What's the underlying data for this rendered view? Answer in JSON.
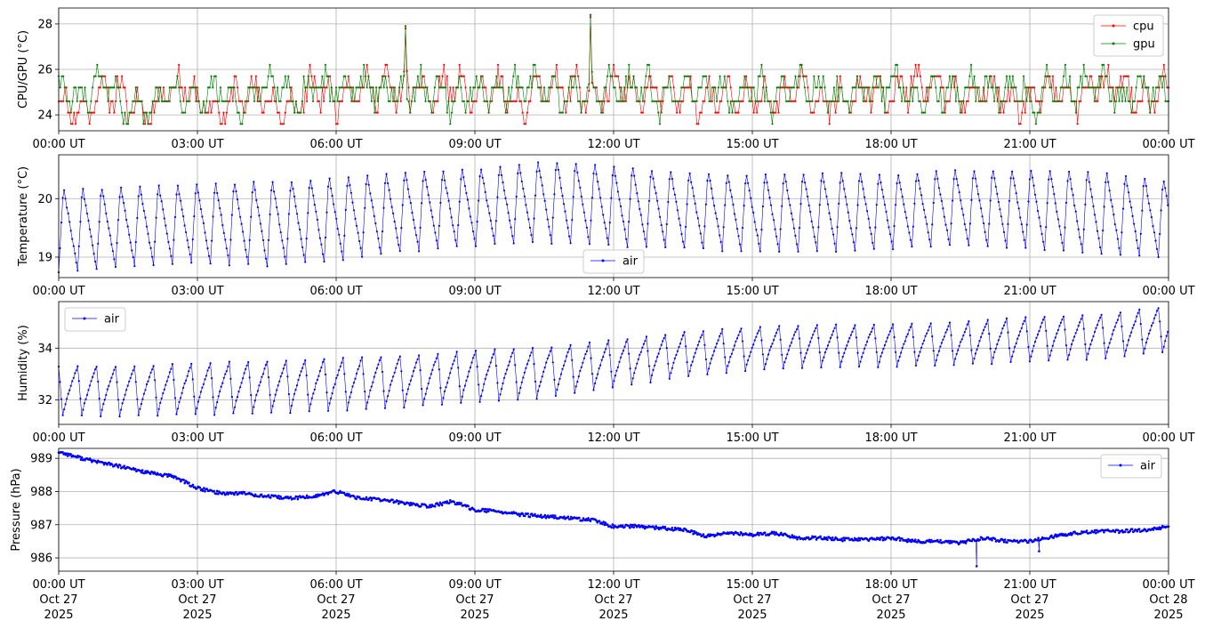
{
  "chart_data": [
    {
      "type": "line",
      "ylabel": "CPU/GPU (°C)",
      "xlabel": "",
      "ylim": [
        23.3,
        28.7
      ],
      "yticks": [
        24,
        26,
        28
      ],
      "xticks": [
        "00:00 UT",
        "03:00 UT",
        "06:00 UT",
        "09:00 UT",
        "12:00 UT",
        "15:00 UT",
        "18:00 UT",
        "21:00 UT",
        "00:00 UT"
      ],
      "grid": true,
      "legend": "top-right",
      "series": [
        {
          "name": "cpu",
          "color": "#ff0000",
          "x_hours": [
            0.0,
            0.5,
            1.0,
            1.5,
            2.0,
            2.5,
            3.0,
            3.5,
            4.0,
            4.5,
            5.0,
            5.5,
            6.0,
            6.5,
            7.0,
            7.5,
            8.0,
            8.5,
            9.0,
            9.5,
            10.0,
            10.5,
            11.0,
            11.5,
            12.0,
            12.5,
            13.0,
            13.5,
            14.0,
            14.5,
            15.0,
            15.5,
            16.0,
            16.5,
            17.0,
            17.5,
            18.0,
            18.5,
            19.0,
            19.5,
            20.0,
            20.5,
            21.0,
            21.5,
            22.0,
            22.5,
            23.0,
            23.5,
            24.0
          ],
          "values": [
            24.6,
            24.1,
            25.2,
            24.6,
            24.1,
            25.7,
            24.6,
            24.1,
            25.2,
            24.6,
            24.1,
            25.2,
            24.6,
            25.7,
            25.2,
            27.8,
            24.6,
            25.7,
            24.6,
            25.2,
            24.1,
            26.2,
            25.2,
            28.3,
            25.7,
            24.6,
            25.2,
            24.6,
            24.6,
            25.2,
            24.6,
            24.6,
            25.2,
            24.6,
            24.6,
            25.2,
            24.6,
            26.2,
            25.2,
            24.6,
            25.2,
            24.6,
            24.6,
            25.2,
            24.6,
            25.7,
            25.2,
            24.6,
            25.2
          ]
        },
        {
          "name": "gpu",
          "color": "#008000",
          "x_hours": [
            0.0,
            0.5,
            1.0,
            1.5,
            2.0,
            2.5,
            3.0,
            3.5,
            4.0,
            4.5,
            5.0,
            5.5,
            6.0,
            6.5,
            7.0,
            7.5,
            8.0,
            8.5,
            9.0,
            9.5,
            10.0,
            10.5,
            11.0,
            11.5,
            12.0,
            12.5,
            13.0,
            13.5,
            14.0,
            14.5,
            15.0,
            15.5,
            16.0,
            16.5,
            17.0,
            17.5,
            18.0,
            18.5,
            19.0,
            19.5,
            20.0,
            20.5,
            21.0,
            21.5,
            22.0,
            22.5,
            23.0,
            23.5,
            24.0
          ],
          "values": [
            25.2,
            24.6,
            25.7,
            24.1,
            24.6,
            25.2,
            24.6,
            25.2,
            24.1,
            25.7,
            24.6,
            25.2,
            25.2,
            25.7,
            25.2,
            27.9,
            25.7,
            24.6,
            25.2,
            24.6,
            25.7,
            25.2,
            24.6,
            28.4,
            25.2,
            25.7,
            24.6,
            25.2,
            25.7,
            24.6,
            25.2,
            24.6,
            25.7,
            25.2,
            24.6,
            25.2,
            25.7,
            24.6,
            25.2,
            26.2,
            25.2,
            25.7,
            24.6,
            25.2,
            25.7,
            26.2,
            24.6,
            25.2,
            25.7
          ]
        }
      ]
    },
    {
      "type": "line",
      "ylabel": "Temperature (°C)",
      "xlabel": "",
      "ylim": [
        18.65,
        20.75
      ],
      "yticks": [
        19,
        20
      ],
      "xticks": [
        "00:00 UT",
        "03:00 UT",
        "06:00 UT",
        "09:00 UT",
        "12:00 UT",
        "15:00 UT",
        "18:00 UT",
        "21:00 UT",
        "00:00 UT"
      ],
      "grid": true,
      "legend": "bottom-center",
      "series": [
        {
          "name": "air",
          "color": "#0000ff",
          "cycle_hours": 0.41,
          "cycle_peaks": [
            20.2,
            20.25,
            20.3,
            20.35,
            20.4,
            20.5,
            20.55,
            20.7,
            20.6,
            20.5,
            20.45,
            20.5,
            20.45,
            20.55,
            20.55,
            20.5,
            20.35
          ],
          "cycle_troughs": [
            18.75,
            18.85,
            18.9,
            18.85,
            18.95,
            19.1,
            19.2,
            19.25,
            19.2,
            19.15,
            19.1,
            19.1,
            19.15,
            19.2,
            19.15,
            19.05,
            19.0
          ],
          "anchor_hours": [
            0,
            1.5,
            3,
            4.5,
            6,
            7.5,
            9,
            10.5,
            12,
            13.5,
            15,
            16.5,
            18,
            19.5,
            21,
            22.5,
            24
          ]
        }
      ]
    },
    {
      "type": "line",
      "ylabel": "Humidity (%)",
      "xlabel": "",
      "ylim": [
        31.05,
        35.8
      ],
      "yticks": [
        32,
        34
      ],
      "xticks": [
        "00:00 UT",
        "03:00 UT",
        "06:00 UT",
        "09:00 UT",
        "12:00 UT",
        "15:00 UT",
        "18:00 UT",
        "21:00 UT",
        "00:00 UT"
      ],
      "grid": true,
      "legend": "top-left",
      "series": [
        {
          "name": "air",
          "color": "#0000ff",
          "cycle_hours": 0.41,
          "cycle_peaks": [
            33.3,
            33.3,
            33.4,
            33.5,
            33.6,
            33.7,
            33.9,
            34.0,
            34.3,
            34.6,
            34.8,
            34.9,
            34.9,
            35.0,
            35.2,
            35.3,
            35.6
          ],
          "cycle_troughs": [
            31.3,
            31.3,
            31.35,
            31.4,
            31.5,
            31.65,
            31.8,
            32.0,
            32.4,
            32.8,
            33.1,
            33.2,
            33.2,
            33.3,
            33.4,
            33.5,
            33.8
          ],
          "anchor_hours": [
            0,
            1.5,
            3,
            4.5,
            6,
            7.5,
            9,
            10.5,
            12,
            13.5,
            15,
            16.5,
            18,
            19.5,
            21,
            22.5,
            24
          ]
        }
      ]
    },
    {
      "type": "line",
      "ylabel": "Pressure (hPa)",
      "xlabel": "",
      "ylim": [
        985.6,
        989.3
      ],
      "yticks": [
        986,
        987,
        988,
        989
      ],
      "xticks": [
        "00:00 UT",
        "03:00 UT",
        "06:00 UT",
        "09:00 UT",
        "12:00 UT",
        "15:00 UT",
        "18:00 UT",
        "21:00 UT",
        "00:00 UT"
      ],
      "xticks_line2": [
        "Oct 27",
        "Oct 27",
        "Oct 27",
        "Oct 27",
        "Oct 27",
        "Oct 27",
        "Oct 27",
        "Oct 27",
        "Oct 28"
      ],
      "xticks_line3": [
        "2025",
        "2025",
        "2025",
        "2025",
        "2025",
        "2025",
        "2025",
        "2025",
        "2025"
      ],
      "grid": true,
      "legend": "top-right",
      "series": [
        {
          "name": "air",
          "color": "#0000ff",
          "x_hours": [
            0,
            0.5,
            1,
            1.5,
            2,
            2.5,
            3,
            3.5,
            4,
            4.5,
            5,
            5.5,
            6,
            6.5,
            7,
            7.5,
            8,
            8.5,
            9,
            9.5,
            10,
            10.5,
            11,
            11.5,
            12,
            12.5,
            13,
            13.5,
            14,
            14.5,
            15,
            15.5,
            16,
            16.5,
            17,
            17.5,
            18,
            18.5,
            19,
            19.5,
            20,
            20.5,
            21,
            21.5,
            22,
            22.5,
            23,
            23.5,
            24
          ],
          "values": [
            989.2,
            989.0,
            988.85,
            988.7,
            988.55,
            988.45,
            988.1,
            987.95,
            987.95,
            987.85,
            987.8,
            987.85,
            988.0,
            987.8,
            987.75,
            987.65,
            987.55,
            987.7,
            987.45,
            987.4,
            987.3,
            987.25,
            987.2,
            987.15,
            986.95,
            986.95,
            986.9,
            986.85,
            986.65,
            986.75,
            986.7,
            986.75,
            986.6,
            986.6,
            986.55,
            986.55,
            986.6,
            986.5,
            986.5,
            986.45,
            986.6,
            986.5,
            986.5,
            986.65,
            986.75,
            986.8,
            986.8,
            986.85,
            986.95
          ],
          "outliers": [
            {
              "x_hour": 19.85,
              "value": 985.75
            },
            {
              "x_hour": 21.2,
              "value": 986.2
            }
          ]
        }
      ]
    }
  ]
}
